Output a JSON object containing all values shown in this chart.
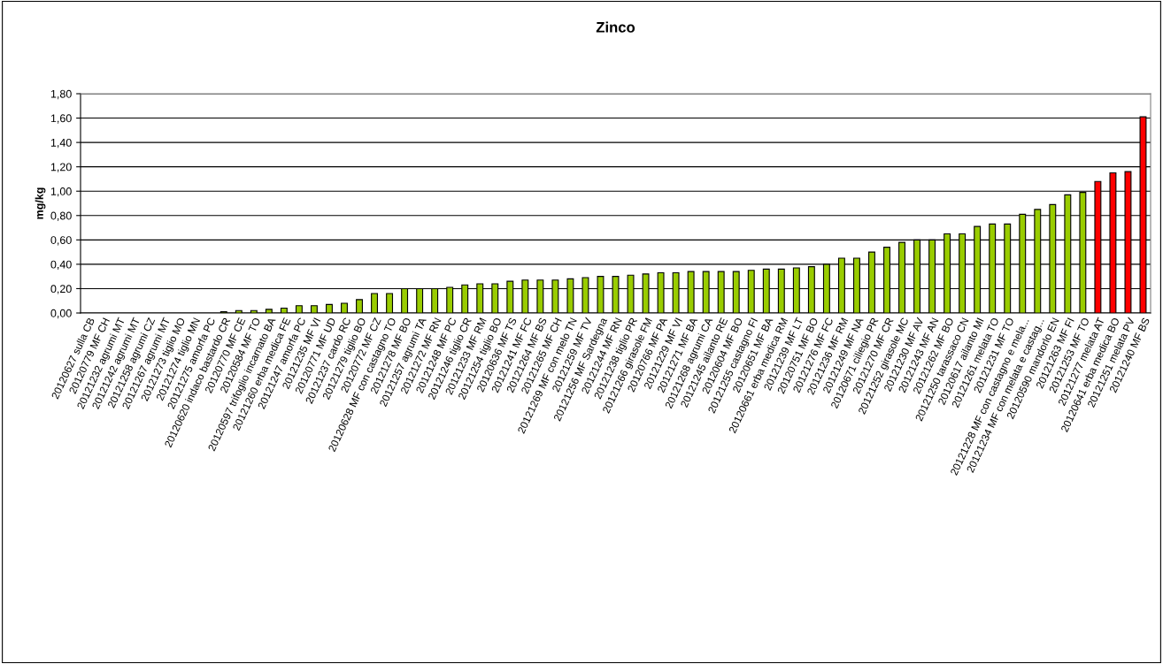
{
  "chart_data": {
    "type": "bar",
    "title": "Zinco",
    "ylabel": "mg/kg",
    "categories": [
      "20120627 sulla CB",
      "20120779 MF CH",
      "20121232 agrumi MT",
      "20121242 agrumi MT",
      "20121258 agrumi CZ",
      "20121267 agrumi MT",
      "20121273 tiglio MO",
      "20121274 tiglio MN",
      "20121275 amorfa PC",
      "20120620 indaco bastardo CR",
      "20120770 MF CE",
      "20120584 MF TO",
      "20120597 trifoglio incarnato BA",
      "20121260 erba medica FE",
      "20121247 amorfa PC",
      "20121235 MF VI",
      "20120771 MF UD",
      "20121237 cardo RC",
      "20121279 tiglio BO",
      "20120772 MF CZ",
      "20120628 MF con castagno TO",
      "20121278 MF BO",
      "20121257 agrumi TA",
      "20121272 MF RN",
      "20121248 MF PC",
      "20121246 tiglio CR",
      "20121233 MF RM",
      "20121254 tiglio BO",
      "20120636 MF TS",
      "20121241 MF FC",
      "20121264 MF BS",
      "20121265 MF CH",
      "20121269 MF con melo TN",
      "20121259 MF TV",
      "20121256 MF Sardegna",
      "20121244 MF RN",
      "20121238 tiglio PR",
      "20121266 girasole FM",
      "20120766 MF PA",
      "20121229 MF VI",
      "20121271 MF BA",
      "20121268 agrumi CA",
      "20121245 ailanto RE",
      "20120604 MF BO",
      "20121255 castagno FI",
      "20120651 MF BA",
      "20120661 erba medica RM",
      "20121239 MF LT",
      "20120751 MF BO",
      "20121276 MF FC",
      "20121236 MF RM",
      "20121249 MF NA",
      "20120671 ciliegio PR",
      "20121270 MF CR",
      "20121252 girasole MC",
      "20121230 MF AV",
      "20121243 MF AN",
      "20121262 MF BO",
      "20121250 tarassaco CN",
      "20120617 ailanto MI",
      "20121261 melata TO",
      "20121231 MF TO",
      "20121228 MF con castagno e mela...",
      "20121234 MF con melata e castag...",
      "20120590 mandorlo EN",
      "20121263 MF FI",
      "20121253 MF TO",
      "20121277 melata AT",
      "20120641 erba medica BO",
      "20121251 melata PV",
      "20121240 MF BS"
    ],
    "values": [
      0,
      0,
      0,
      0,
      0,
      0,
      0,
      0,
      0,
      0.01,
      0.02,
      0.02,
      0.03,
      0.04,
      0.06,
      0.06,
      0.07,
      0.08,
      0.11,
      0.16,
      0.16,
      0.2,
      0.2,
      0.2,
      0.21,
      0.23,
      0.24,
      0.24,
      0.26,
      0.27,
      0.27,
      0.27,
      0.28,
      0.29,
      0.3,
      0.3,
      0.31,
      0.32,
      0.33,
      0.33,
      0.34,
      0.34,
      0.34,
      0.34,
      0.35,
      0.36,
      0.36,
      0.37,
      0.38,
      0.4,
      0.45,
      0.45,
      0.5,
      0.54,
      0.58,
      0.6,
      0.6,
      0.65,
      0.65,
      0.71,
      0.73,
      0.73,
      0.81,
      0.85,
      0.89,
      0.97,
      0.99,
      1.08,
      1.15,
      1.16,
      1.61
    ],
    "colors": [
      "#99cc00",
      "#99cc00",
      "#99cc00",
      "#99cc00",
      "#99cc00",
      "#99cc00",
      "#99cc00",
      "#99cc00",
      "#99cc00",
      "#99cc00",
      "#99cc00",
      "#99cc00",
      "#99cc00",
      "#99cc00",
      "#99cc00",
      "#99cc00",
      "#99cc00",
      "#99cc00",
      "#99cc00",
      "#99cc00",
      "#99cc00",
      "#99cc00",
      "#99cc00",
      "#99cc00",
      "#99cc00",
      "#99cc00",
      "#99cc00",
      "#99cc00",
      "#99cc00",
      "#99cc00",
      "#99cc00",
      "#99cc00",
      "#99cc00",
      "#99cc00",
      "#99cc00",
      "#99cc00",
      "#99cc00",
      "#99cc00",
      "#99cc00",
      "#99cc00",
      "#99cc00",
      "#99cc00",
      "#99cc00",
      "#99cc00",
      "#99cc00",
      "#99cc00",
      "#99cc00",
      "#99cc00",
      "#99cc00",
      "#99cc00",
      "#99cc00",
      "#99cc00",
      "#99cc00",
      "#99cc00",
      "#99cc00",
      "#99cc00",
      "#99cc00",
      "#99cc00",
      "#99cc00",
      "#99cc00",
      "#99cc00",
      "#99cc00",
      "#99cc00",
      "#99cc00",
      "#99cc00",
      "#99cc00",
      "#99cc00",
      "#ff0000",
      "#ff0000",
      "#ff0000",
      "#ff0000"
    ],
    "ylim": [
      0,
      1.8
    ],
    "yticks": [
      {
        "value": 0,
        "label": "0,00"
      },
      {
        "value": 0.2,
        "label": "0,20"
      },
      {
        "value": 0.4,
        "label": "0,40"
      },
      {
        "value": 0.6,
        "label": "0,60"
      },
      {
        "value": 0.8,
        "label": "0,80"
      },
      {
        "value": 1.0,
        "label": "1,00"
      },
      {
        "value": 1.2,
        "label": "1,20"
      },
      {
        "value": 1.4,
        "label": "1,40"
      },
      {
        "value": 1.6,
        "label": "1,60"
      },
      {
        "value": 1.8,
        "label": "1,80"
      }
    ],
    "grid": "y",
    "legend": false
  }
}
